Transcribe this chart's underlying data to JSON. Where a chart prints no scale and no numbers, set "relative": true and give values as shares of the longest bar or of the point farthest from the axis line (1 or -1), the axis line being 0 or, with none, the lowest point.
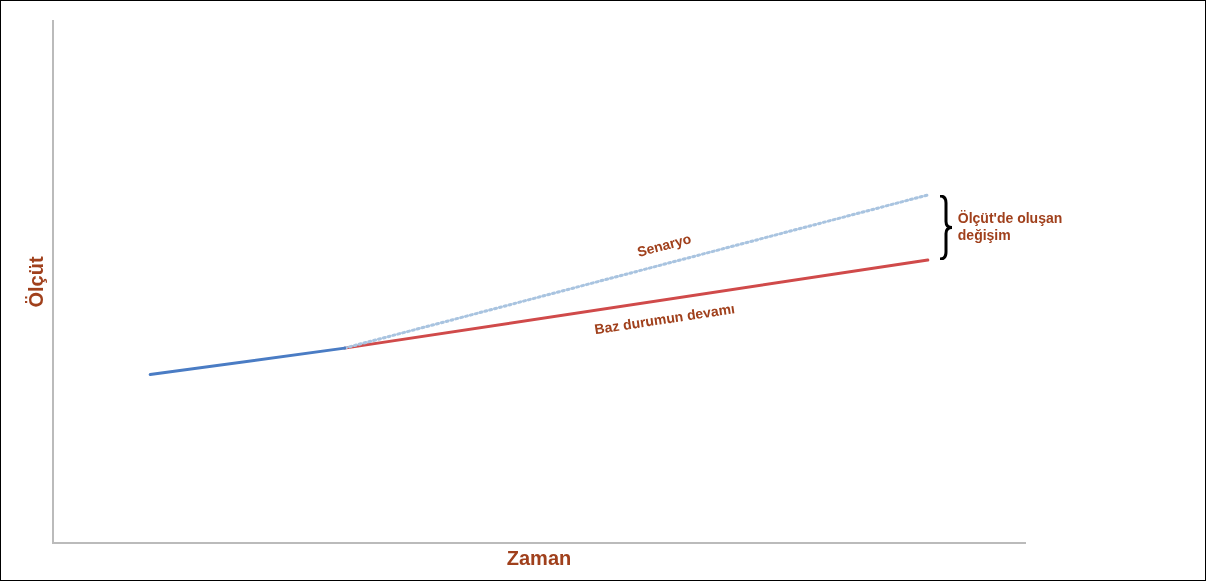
{
  "chart_data": {
    "type": "line",
    "relative": true,
    "xlabel": "Zaman",
    "ylabel": "Ölçüt",
    "categories": [
      null,
      null,
      null,
      null,
      null
    ],
    "marker": "none",
    "legend": false,
    "grid": false,
    "series": [
      {
        "color": "#4a7cc4",
        "values": [
          0.484,
          0.56,
          null,
          null,
          null
        ]
      },
      {
        "name": "Senaryo",
        "color": "#a9c4e0",
        "line_style": "dotted",
        "values": [
          null,
          0.56,
          null,
          null,
          1
        ]
      },
      {
        "name": "Baz durumun devamı",
        "color": "#d04a4a",
        "values": [
          null,
          0.56,
          null,
          null,
          0.813
        ]
      }
    ],
    "annotations": [
      "Ölçüt'de oluşan değişim"
    ]
  }
}
